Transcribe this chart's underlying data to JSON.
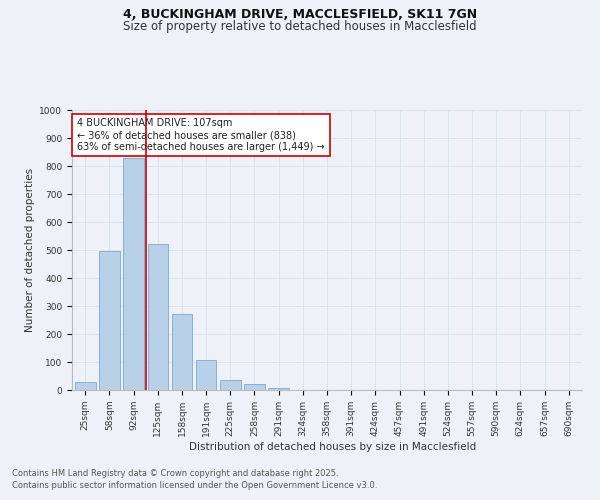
{
  "title": "4, BUCKINGHAM DRIVE, MACCLESFIELD, SK11 7GN",
  "subtitle": "Size of property relative to detached houses in Macclesfield",
  "xlabel": "Distribution of detached houses by size in Macclesfield",
  "ylabel": "Number of detached properties",
  "bar_labels": [
    "25sqm",
    "58sqm",
    "92sqm",
    "125sqm",
    "158sqm",
    "191sqm",
    "225sqm",
    "258sqm",
    "291sqm",
    "324sqm",
    "358sqm",
    "391sqm",
    "424sqm",
    "457sqm",
    "491sqm",
    "524sqm",
    "557sqm",
    "590sqm",
    "624sqm",
    "657sqm",
    "690sqm"
  ],
  "bar_values": [
    30,
    495,
    830,
    520,
    270,
    108,
    35,
    20,
    8,
    0,
    0,
    0,
    0,
    0,
    0,
    0,
    0,
    0,
    0,
    0,
    0
  ],
  "bar_color": "#b8d0e8",
  "bar_edge_color": "#7aaad0",
  "grid_color": "#d8e4f0",
  "background_color": "#eef2f8",
  "vline_x": 2.5,
  "vline_color": "#cc0000",
  "annotation_text": "4 BUCKINGHAM DRIVE: 107sqm\n← 36% of detached houses are smaller (838)\n63% of semi-detached houses are larger (1,449) →",
  "annotation_box_color": "#ffffff",
  "annotation_box_edge": "#cc0000",
  "ylim": [
    0,
    1000
  ],
  "yticks": [
    0,
    100,
    200,
    300,
    400,
    500,
    600,
    700,
    800,
    900,
    1000
  ],
  "footer_line1": "Contains HM Land Registry data © Crown copyright and database right 2025.",
  "footer_line2": "Contains public sector information licensed under the Open Government Licence v3.0.",
  "title_fontsize": 9,
  "subtitle_fontsize": 8.5,
  "axis_label_fontsize": 7.5,
  "tick_fontsize": 6.5,
  "annotation_fontsize": 7,
  "footer_fontsize": 6
}
